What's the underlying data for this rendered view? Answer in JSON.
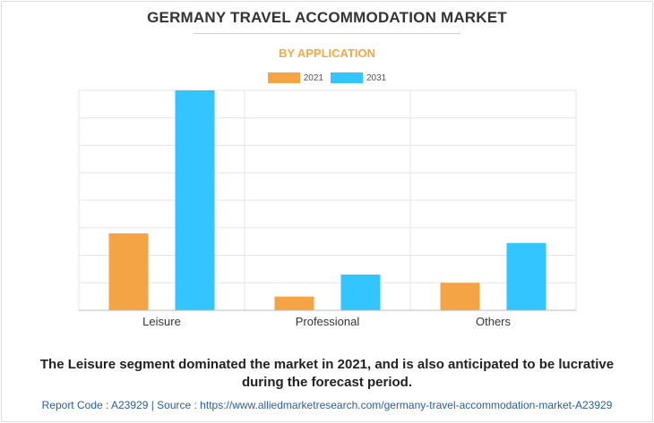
{
  "title": "GERMANY TRAVEL ACCOMMODATION MARKET",
  "subtitle": "BY APPLICATION",
  "chart_data": {
    "type": "bar",
    "categories": [
      "Leisure",
      "Professional",
      "Others"
    ],
    "series": [
      {
        "name": "2021",
        "color": "#f4a445",
        "values": [
          2.8,
          0.5,
          1.0
        ]
      },
      {
        "name": "2031",
        "color": "#33c5ff",
        "values": [
          8.0,
          1.3,
          2.45
        ]
      }
    ],
    "ylim": [
      0,
      8
    ],
    "grid": true,
    "legend_position": "top-center"
  },
  "caption_line1": "The Leisure segment dominated the market in 2021, and is also anticipated to be lucrative",
  "caption_line2": "during the forecast period.",
  "footer": "Report Code : A23929  |  Source : https://www.alliedmarketresearch.com/germany-travel-accommodation-market-A23929"
}
